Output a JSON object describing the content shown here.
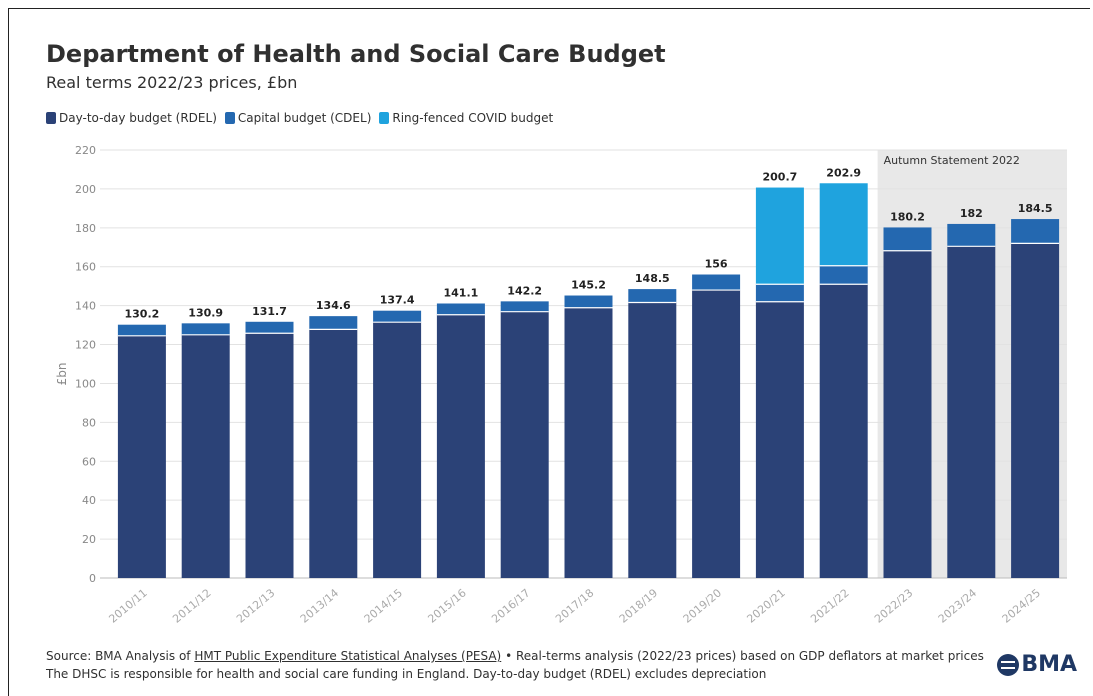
{
  "title": "Department of Health and Social Care Budget",
  "subtitle": "Real terms 2022/23 prices, £bn",
  "legend": [
    {
      "label": "Day-to-day budget (RDEL)",
      "color": "#2b4277"
    },
    {
      "label": "Capital budget (CDEL)",
      "color": "#2468b0"
    },
    {
      "label": "Ring-fenced COVID budget",
      "color": "#1fa3de"
    }
  ],
  "footer": {
    "line1_prefix": "Source: BMA Analysis of ",
    "line1_link": "HMT Public Expenditure Statistical Analyses (PESA)",
    "line1_suffix": " • Real-terms analysis (2022/23 prices) based on GDP deflators at market prices",
    "line2": "The DHSC is responsible for health and social care funding in England. Day-to-day budget (RDEL) excludes depreciation"
  },
  "logo": {
    "text": "BMA"
  },
  "chart_data": {
    "type": "bar",
    "stacked": true,
    "categories": [
      "2010/11",
      "2011/12",
      "2012/13",
      "2013/14",
      "2014/15",
      "2015/16",
      "2016/17",
      "2017/18",
      "2018/19",
      "2019/20",
      "2020/21",
      "2021/22",
      "2022/23",
      "2023/24",
      "2024/25"
    ],
    "series": [
      {
        "name": "Day-to-day budget (RDEL)",
        "color": "#2b4277",
        "values": [
          124.5,
          125.0,
          125.8,
          127.8,
          131.5,
          135.3,
          136.9,
          138.9,
          141.6,
          148.0,
          142.0,
          151.0,
          168.2,
          170.5,
          172.0
        ]
      },
      {
        "name": "Capital budget (CDEL)",
        "color": "#2468b0",
        "values": [
          5.7,
          5.9,
          5.9,
          6.8,
          5.9,
          5.8,
          5.3,
          6.3,
          6.9,
          8.0,
          9.0,
          9.5,
          12.0,
          11.5,
          12.5
        ]
      },
      {
        "name": "Ring-fenced COVID budget",
        "color": "#1fa3de",
        "values": [
          0,
          0,
          0,
          0,
          0,
          0,
          0,
          0,
          0,
          0,
          49.7,
          42.4,
          0,
          0,
          0
        ]
      }
    ],
    "totals": [
      "130.2",
      "130.9",
      "131.7",
      "134.6",
      "137.4",
      "141.1",
      "142.2",
      "145.2",
      "148.5",
      "156",
      "200.7",
      "202.9",
      "180.2",
      "182",
      "184.5"
    ],
    "ylabel": "£bn",
    "xlabel": "",
    "ylim": [
      0,
      220
    ],
    "yticks": [
      0,
      20,
      40,
      60,
      80,
      100,
      120,
      140,
      160,
      180,
      200,
      220
    ],
    "grid": true,
    "legend_position": "top-left",
    "forecast_region": {
      "label": "Autumn Statement 2022",
      "from_category": "2022/23",
      "to_category": "2024/25"
    }
  }
}
